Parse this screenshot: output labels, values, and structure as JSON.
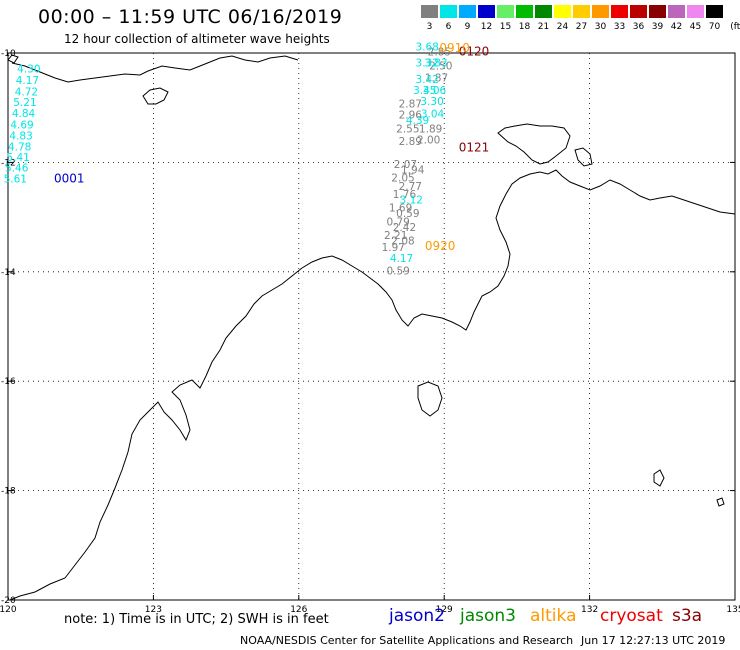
{
  "title": "00:00 – 11:59 UTC 06/16/2019",
  "subtitle": "12 hour collection of altimeter wave heights",
  "legend": {
    "units_label": "(ft)",
    "bins": [
      {
        "label": "3",
        "color": "#808080"
      },
      {
        "label": "6",
        "color": "#00e5e5"
      },
      {
        "label": "9",
        "color": "#00aaff"
      },
      {
        "label": "12",
        "color": "#0000cc"
      },
      {
        "label": "15",
        "color": "#66ee66"
      },
      {
        "label": "18",
        "color": "#00bb00"
      },
      {
        "label": "21",
        "color": "#008800"
      },
      {
        "label": "24",
        "color": "#ffff00"
      },
      {
        "label": "27",
        "color": "#ffcc00"
      },
      {
        "label": "30",
        "color": "#ff9900"
      },
      {
        "label": "33",
        "color": "#ee0000"
      },
      {
        "label": "36",
        "color": "#bb0000"
      },
      {
        "label": "39",
        "color": "#880000"
      },
      {
        "label": "42",
        "color": "#bb66bb"
      },
      {
        "label": "45",
        "color": "#ee88ee"
      },
      {
        "label": "70",
        "color": "#000000"
      }
    ]
  },
  "axes": {
    "x_ticks": [
      "120",
      "123",
      "126",
      "129",
      "132",
      "135"
    ],
    "y_ticks": [
      "-10",
      "-12",
      "-14",
      "-16",
      "-18",
      "-20"
    ]
  },
  "tracks": [
    {
      "id": "0001",
      "color": "#0000cc",
      "time_label": "0001",
      "points": [
        {
          "lon": 120.43,
          "lat": -10.36,
          "v": "4.30",
          "c": "#00e5e5"
        },
        {
          "lon": 120.4,
          "lat": -10.57,
          "v": "4.17",
          "c": "#00e5e5"
        },
        {
          "lon": 120.38,
          "lat": -10.78,
          "v": "4.72",
          "c": "#00e5e5"
        },
        {
          "lon": 120.35,
          "lat": -10.97,
          "v": "5.21",
          "c": "#00e5e5"
        },
        {
          "lon": 120.32,
          "lat": -11.17,
          "v": "4.84",
          "c": "#00e5e5"
        },
        {
          "lon": 120.29,
          "lat": -11.38,
          "v": "4.69",
          "c": "#00e5e5"
        },
        {
          "lon": 120.27,
          "lat": -11.58,
          "v": "4.83",
          "c": "#00e5e5"
        },
        {
          "lon": 120.24,
          "lat": -11.78,
          "v": "4.78",
          "c": "#00e5e5"
        },
        {
          "lon": 120.21,
          "lat": -11.97,
          "v": "5.41",
          "c": "#00e5e5"
        },
        {
          "lon": 120.18,
          "lat": -12.17,
          "v": "5.46",
          "c": "#00e5e5"
        },
        {
          "lon": 120.15,
          "lat": -12.37,
          "v": "5.61",
          "c": "#00e5e5"
        }
      ]
    },
    {
      "id": "0120",
      "color": "#880000",
      "time_label": "0120",
      "points": [
        {
          "lon": 128.9,
          "lat": -10.05,
          "v": "2.85",
          "c": "#808080"
        },
        {
          "lon": 128.93,
          "lat": -10.3,
          "v": "2.50",
          "c": "#808080"
        },
        {
          "lon": 128.84,
          "lat": -10.52,
          "v": "1.87",
          "c": "#808080"
        },
        {
          "lon": 128.8,
          "lat": -10.75,
          "v": "3.06",
          "c": "#00e5e5"
        },
        {
          "lon": 128.76,
          "lat": -11.18,
          "v": "3.04",
          "c": "#00e5e5"
        },
        {
          "lon": 128.72,
          "lat": -11.45,
          "v": "1.89",
          "c": "#808080"
        },
        {
          "lon": 128.68,
          "lat": -11.65,
          "v": "2.00",
          "c": "#808080"
        }
      ]
    },
    {
      "id": "0121",
      "color": "#880000",
      "time_label": "0121",
      "points": []
    },
    {
      "id": "0910",
      "color": "#ff9900",
      "time_label": "0910",
      "points": [
        {
          "lon": 128.65,
          "lat": -9.95,
          "v": "3.68",
          "c": "#00e5e5"
        },
        {
          "lon": 128.65,
          "lat": -10.25,
          "v": "3.32",
          "c": "#00e5e5"
        },
        {
          "lon": 128.83,
          "lat": -10.25,
          "v": "3.83",
          "c": "#00e5e5"
        },
        {
          "lon": 128.65,
          "lat": -10.55,
          "v": "3.42",
          "c": "#00e5e5"
        },
        {
          "lon": 128.6,
          "lat": -10.75,
          "v": "3.45",
          "c": "#00e5e5"
        },
        {
          "lon": 128.75,
          "lat": -10.95,
          "v": "3.30",
          "c": "#00e5e5"
        },
        {
          "lon": 128.45,
          "lat": -11.3,
          "v": "4.39",
          "c": "#00e5e5"
        }
      ]
    },
    {
      "id": "0920",
      "color": "#ff9900",
      "time_label": "0920",
      "points": [
        {
          "lon": 128.3,
          "lat": -11.0,
          "v": "2.87",
          "c": "#808080"
        },
        {
          "lon": 128.3,
          "lat": -11.2,
          "v": "2.96",
          "c": "#808080"
        },
        {
          "lon": 128.25,
          "lat": -11.45,
          "v": "2.55",
          "c": "#808080"
        },
        {
          "lon": 128.3,
          "lat": -11.68,
          "v": "2.89",
          "c": "#808080"
        },
        {
          "lon": 128.2,
          "lat": -12.1,
          "v": "2.07",
          "c": "#808080"
        },
        {
          "lon": 128.15,
          "lat": -12.35,
          "v": "2.05",
          "c": "#808080"
        },
        {
          "lon": 128.35,
          "lat": -12.2,
          "v": "1.94",
          "c": "#808080"
        },
        {
          "lon": 128.18,
          "lat": -12.65,
          "v": "1.76",
          "c": "#808080"
        },
        {
          "lon": 128.3,
          "lat": -12.5,
          "v": "2.77",
          "c": "#808080"
        },
        {
          "lon": 128.32,
          "lat": -12.75,
          "v": "3.12",
          "c": "#00e5e5"
        },
        {
          "lon": 128.1,
          "lat": -12.9,
          "v": "1.69",
          "c": "#808080"
        },
        {
          "lon": 128.25,
          "lat": -13.0,
          "v": "0.59",
          "c": "#808080"
        },
        {
          "lon": 128.05,
          "lat": -13.15,
          "v": "0.79",
          "c": "#808080"
        },
        {
          "lon": 128.18,
          "lat": -13.25,
          "v": "2.42",
          "c": "#808080"
        },
        {
          "lon": 128.0,
          "lat": -13.4,
          "v": "2.21",
          "c": "#808080"
        },
        {
          "lon": 128.15,
          "lat": -13.5,
          "v": "2.08",
          "c": "#808080"
        },
        {
          "lon": 127.95,
          "lat": -13.62,
          "v": "1.97",
          "c": "#808080"
        },
        {
          "lon": 128.12,
          "lat": -13.82,
          "v": "4.17",
          "c": "#00e5e5"
        },
        {
          "lon": 128.05,
          "lat": -14.05,
          "v": "0.59",
          "c": "#808080"
        }
      ]
    }
  ],
  "footer": {
    "note": "note:  1) Time is in UTC; 2) SWH is in feet",
    "satellites": [
      {
        "name": "jason2",
        "color": "#0000cc"
      },
      {
        "name": "jason3",
        "color": "#008800"
      },
      {
        "name": "altika",
        "color": "#ff9900"
      },
      {
        "name": "cryosat",
        "color": "#ee0000"
      },
      {
        "name": "s3a",
        "color": "#880000"
      }
    ],
    "credit": "NOAA/NESDIS Center for Satellite Applications and Research",
    "timestamp": "Jun 17 12:27:13 UTC 2019"
  }
}
